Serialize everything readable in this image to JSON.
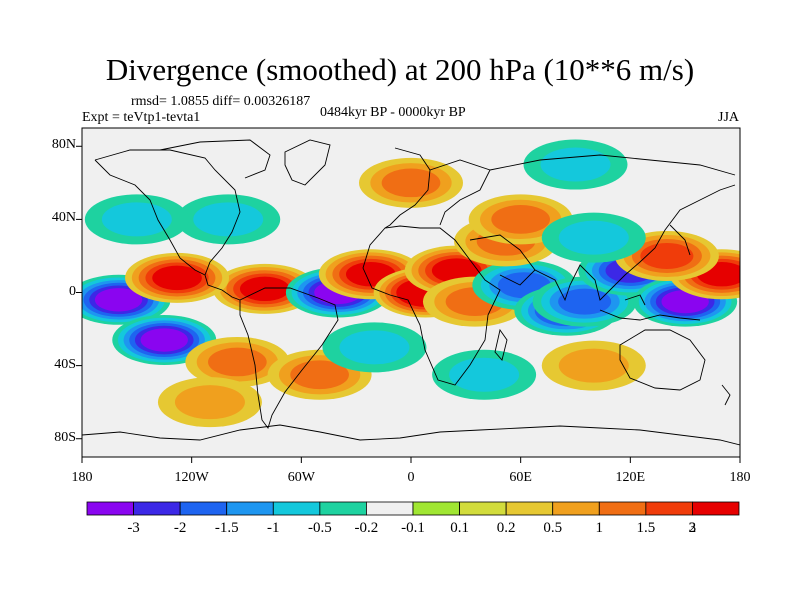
{
  "title": "Divergence (smoothed) at 200 hPa (10**6 m/s)",
  "stats": "rmsd= 1.0855 diff= 0.00326187",
  "experiment": "Expt = teVtp1-tevta1",
  "period": "0484kyr BP - 0000kyr BP",
  "season": "JJA",
  "y_axis": {
    "ticks": [
      {
        "label": "80N",
        "lat": 80
      },
      {
        "label": "40N",
        "lat": 40
      },
      {
        "label": "0",
        "lat": 0
      },
      {
        "label": "40S",
        "lat": -40
      },
      {
        "label": "80S",
        "lat": -80
      }
    ]
  },
  "x_axis": {
    "ticks": [
      {
        "label": "180",
        "lon": -180
      },
      {
        "label": "120W",
        "lon": -120
      },
      {
        "label": "60W",
        "lon": -60
      },
      {
        "label": "0",
        "lon": 0
      },
      {
        "label": "60E",
        "lon": 60
      },
      {
        "label": "120E",
        "lon": 120
      },
      {
        "label": "180",
        "lon": 180
      }
    ]
  },
  "colorbar": {
    "colors": [
      "#8a05f0",
      "#3c28e6",
      "#1e64f0",
      "#1e96f0",
      "#14c8dc",
      "#1ed2a0",
      "#f0f0f0",
      "#a0e632",
      "#d2dc3c",
      "#e6c832",
      "#f0a01e",
      "#f06e14",
      "#f03c0a",
      "#e60000"
    ],
    "labels": [
      "-3",
      "-2",
      "-1.5",
      "-1",
      "-0.5",
      "-0.2",
      "-0.1",
      "0.1",
      "0.2",
      "0.5",
      "1",
      "1.5",
      "2",
      "3"
    ]
  },
  "chart_data": {
    "type": "heatmap",
    "title": "Divergence (smoothed) at 200 hPa (10**6 m/s)",
    "lon_range": [
      -180,
      180
    ],
    "lat_range": [
      -90,
      90
    ],
    "contour_levels": [
      -3,
      -2,
      -1.5,
      -1,
      -0.5,
      -0.2,
      -0.1,
      0.1,
      0.2,
      0.5,
      1,
      1.5,
      2,
      3
    ],
    "features": [
      {
        "lon": -160,
        "lat": -4,
        "value": -3.0
      },
      {
        "lon": -135,
        "lat": -26,
        "value": -3.0
      },
      {
        "lon": -80,
        "lat": 2,
        "value": 2.5
      },
      {
        "lon": -128,
        "lat": 8,
        "value": 2.0
      },
      {
        "lon": -40,
        "lat": 0,
        "value": -3.0
      },
      {
        "lon": -22,
        "lat": 10,
        "value": 2.0
      },
      {
        "lon": 8,
        "lat": 0,
        "value": 3.0
      },
      {
        "lon": 25,
        "lat": 12,
        "value": 2.0
      },
      {
        "lon": 35,
        "lat": -5,
        "value": 1.0
      },
      {
        "lon": 62,
        "lat": 4,
        "value": -1.5
      },
      {
        "lon": 85,
        "lat": -10,
        "value": -2.0
      },
      {
        "lon": 95,
        "lat": -5,
        "value": -1.5
      },
      {
        "lon": 120,
        "lat": 12,
        "value": -2.0
      },
      {
        "lon": 150,
        "lat": -5,
        "value": -3.0
      },
      {
        "lon": 170,
        "lat": 10,
        "value": 2.0
      },
      {
        "lon": 140,
        "lat": 20,
        "value": 1.5
      },
      {
        "lon": 52,
        "lat": 28,
        "value": 1.0
      },
      {
        "lon": 60,
        "lat": 40,
        "value": 1.0
      },
      {
        "lon": 100,
        "lat": 30,
        "value": -0.5
      },
      {
        "lon": -100,
        "lat": 40,
        "value": -0.5
      },
      {
        "lon": -150,
        "lat": 40,
        "value": -0.5
      },
      {
        "lon": -95,
        "lat": -38,
        "value": 1.0
      },
      {
        "lon": -50,
        "lat": -45,
        "value": 1.0
      },
      {
        "lon": -20,
        "lat": -30,
        "value": -0.5
      },
      {
        "lon": 40,
        "lat": -45,
        "value": -0.5
      },
      {
        "lon": 100,
        "lat": -40,
        "value": 0.5
      },
      {
        "lon": -110,
        "lat": -60,
        "value": 0.5
      },
      {
        "lon": 0,
        "lat": 60,
        "value": 1.0
      },
      {
        "lon": 90,
        "lat": 70,
        "value": -0.5
      }
    ]
  }
}
